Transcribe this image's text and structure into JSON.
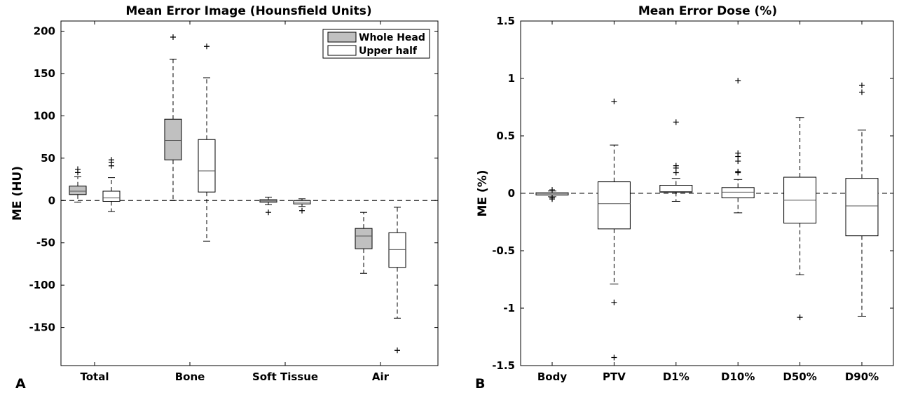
{
  "chart_data": [
    {
      "type": "box",
      "panel_label": "A",
      "title": "Mean Error Image (Hounsfield Units)",
      "ylabel": "ME (HU)",
      "ylim": [
        -195,
        212
      ],
      "yticks": [
        200,
        150,
        100,
        50,
        0,
        -50,
        -100,
        -150
      ],
      "zero_line": true,
      "categories": [
        "Total",
        "Bone",
        "Soft Tissue",
        "Air"
      ],
      "legend": {
        "position": "top-right",
        "entries": [
          "Whole Head",
          "Upper half"
        ]
      },
      "series": [
        {
          "name": "Whole Head",
          "color": "#c0c0c0",
          "boxes": [
            {
              "whisker_low": -2,
              "q1": 7,
              "median": 11,
              "q3": 17,
              "whisker_high": 28,
              "outliers": [
                33,
                37
              ]
            },
            {
              "whisker_low": 0,
              "q1": 48,
              "median": 71,
              "q3": 96,
              "whisker_high": 167,
              "outliers": [
                193
              ]
            },
            {
              "whisker_low": -5,
              "q1": -2,
              "median": -0.5,
              "q3": 1,
              "whisker_high": 4,
              "outliers": [
                -14
              ]
            },
            {
              "whisker_low": -86,
              "q1": -57,
              "median": -42,
              "q3": -33,
              "whisker_high": -14,
              "outliers": []
            }
          ]
        },
        {
          "name": "Upper half",
          "color": "#ffffff",
          "boxes": [
            {
              "whisker_low": -13,
              "q1": -1,
              "median": 3,
              "q3": 11,
              "whisker_high": 27,
              "outliers": [
                41,
                45,
                48
              ]
            },
            {
              "whisker_low": -48,
              "q1": 10,
              "median": 35,
              "q3": 72,
              "whisker_high": 145,
              "outliers": [
                182
              ]
            },
            {
              "whisker_low": -7,
              "q1": -4,
              "median": -2,
              "q3": 0,
              "whisker_high": 2,
              "outliers": [
                -12
              ]
            },
            {
              "whisker_low": -139,
              "q1": -79,
              "median": -58,
              "q3": -38,
              "whisker_high": -8,
              "outliers": [
                -177
              ]
            }
          ]
        }
      ]
    },
    {
      "type": "box",
      "panel_label": "B",
      "title": "Mean Error Dose (%)",
      "ylabel": "ME (%)",
      "ylim": [
        -1.5,
        1.5
      ],
      "yticks": [
        "1.5",
        "1",
        "0.5",
        "0",
        "-0.5",
        "-1",
        "-1.5"
      ],
      "zero_line": true,
      "categories": [
        "Body",
        "PTV",
        "D1%",
        "D10%",
        "D50%",
        "D90%"
      ],
      "series": [
        {
          "color": "#ffffff",
          "boxes": [
            {
              "whisker_low": -0.03,
              "q1": -0.015,
              "median": -0.005,
              "q3": 0.005,
              "whisker_high": 0.02,
              "outliers": [
                -0.05,
                -0.04,
                0.03
              ]
            },
            {
              "whisker_low": -0.79,
              "q1": -0.31,
              "median": -0.09,
              "q3": 0.1,
              "whisker_high": 0.42,
              "outliers": [
                0.8,
                -0.95,
                -1.43
              ]
            },
            {
              "whisker_low": -0.07,
              "q1": 0.01,
              "median": 0.015,
              "q3": 0.07,
              "whisker_high": 0.13,
              "outliers": [
                0.18,
                0.22,
                0.24,
                0.62
              ]
            },
            {
              "whisker_low": -0.17,
              "q1": -0.04,
              "median": 0.01,
              "q3": 0.05,
              "whisker_high": 0.12,
              "outliers": [
                0.18,
                0.19,
                0.28,
                0.32,
                0.35,
                0.98
              ]
            },
            {
              "whisker_low": -0.71,
              "q1": -0.26,
              "median": -0.06,
              "q3": 0.14,
              "whisker_high": 0.66,
              "outliers": [
                -1.08
              ]
            },
            {
              "whisker_low": -1.07,
              "q1": -0.37,
              "median": -0.11,
              "q3": 0.13,
              "whisker_high": 0.55,
              "outliers": [
                0.88,
                0.94
              ]
            }
          ]
        }
      ]
    }
  ]
}
